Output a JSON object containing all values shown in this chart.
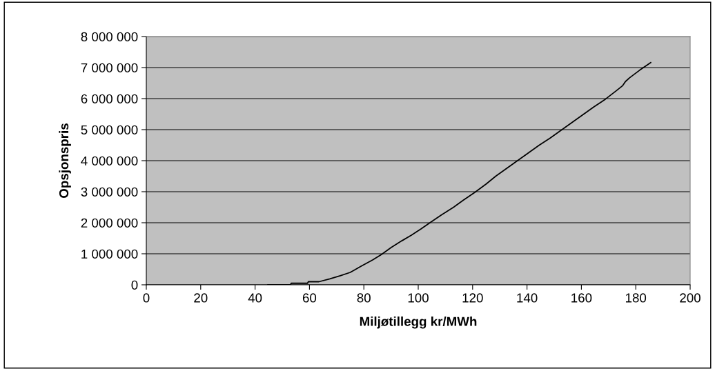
{
  "chart_data": {
    "type": "line",
    "xlabel": "Miljøtillegg kr/MWh",
    "ylabel": "Opsjonspris",
    "series": [
      {
        "color": "#000000",
        "x": [
          44.7,
          53.0,
          53.3,
          59.3,
          59.6,
          63.5,
          67.5,
          71.3,
          75.0,
          79.0,
          83.2,
          86.5,
          90.0,
          94.0,
          97.5,
          101.0,
          104.3,
          108.5,
          113.0,
          116.5,
          120.8,
          125.0,
          128.5,
          132.5,
          136.5,
          140.5,
          144.5,
          148.5,
          152.5,
          156.5,
          160.5,
          164.5,
          168.8,
          172.5,
          175.2,
          176.2,
          177.7,
          181.5,
          185.5
        ],
        "values": [
          0,
          0,
          50000,
          50000,
          100000,
          100000,
          190000,
          290000,
          400000,
          600000,
          800000,
          980000,
          1200000,
          1420000,
          1600000,
          1800000,
          2000000,
          2250000,
          2500000,
          2720000,
          2980000,
          3250000,
          3500000,
          3750000,
          4000000,
          4250000,
          4500000,
          4730000,
          4980000,
          5230000,
          5480000,
          5730000,
          5980000,
          6230000,
          6420000,
          6550000,
          6670000,
          6920000,
          7160000
        ]
      }
    ],
    "xlim": [
      0,
      200
    ],
    "xticks": [
      0,
      20,
      40,
      60,
      80,
      100,
      120,
      140,
      160,
      180,
      200
    ],
    "ylim": [
      0,
      8000000
    ],
    "yticks": [
      {
        "value": 0,
        "label": "0"
      },
      {
        "value": 1000000,
        "label": "1 000 000"
      },
      {
        "value": 2000000,
        "label": "2 000 000"
      },
      {
        "value": 3000000,
        "label": "3 000 000"
      },
      {
        "value": 4000000,
        "label": "4 000 000"
      },
      {
        "value": 5000000,
        "label": "5 000 000"
      },
      {
        "value": 6000000,
        "label": "6 000 000"
      },
      {
        "value": 7000000,
        "label": "7 000 000"
      },
      {
        "value": 8000000,
        "label": "8 000 000"
      }
    ],
    "grid": "y",
    "marker": "none",
    "line_style": "solid",
    "legend": false
  }
}
